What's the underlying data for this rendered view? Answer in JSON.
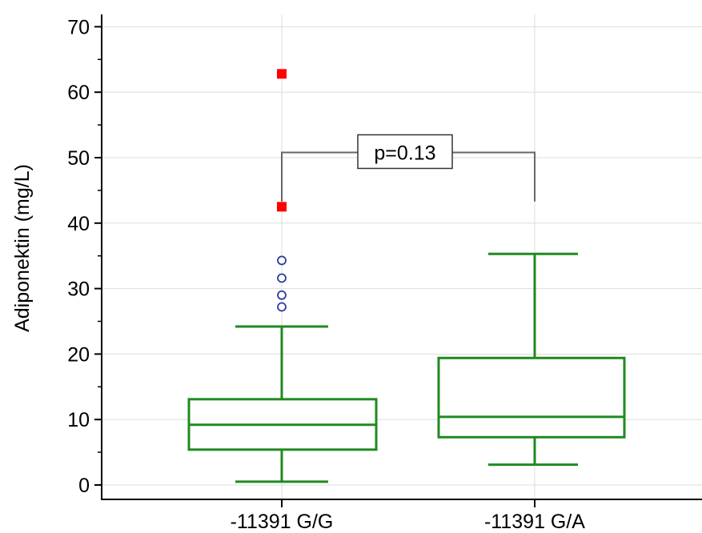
{
  "chart_data": {
    "type": "box",
    "ylabel": "Adiponektin (mg/L)",
    "xlabel": "",
    "ylim": [
      -2,
      70
    ],
    "yticks": [
      0,
      10,
      20,
      30,
      40,
      50,
      60,
      70
    ],
    "categories": [
      "-11391 G/G",
      "-11391 G/A"
    ],
    "grid": "vertical and horizontal light gray",
    "boxes": [
      {
        "category": "-11391 G/G",
        "whisker_low": 0.5,
        "q1": 5.4,
        "median": 9.2,
        "q3": 13.1,
        "whisker_high": 24.2,
        "outliers": [
          27.2,
          29.0,
          31.6,
          34.3
        ],
        "far_outliers": [
          42.5,
          62.8
        ]
      },
      {
        "category": "-11391 G/A",
        "whisker_low": 3.1,
        "q1": 7.3,
        "median": 10.4,
        "q3": 19.4,
        "whisker_high": 35.3,
        "outliers": [],
        "far_outliers": []
      }
    ],
    "annotation": {
      "text": "p=0.13",
      "bracket_y": 50.8,
      "left_end": 43.3,
      "right_end": 43.3
    },
    "colors": {
      "box": "#1f8a1f",
      "outlier": "#2e3a9f",
      "far_outlier": "#ff0000",
      "grid": "#dddddd",
      "bracket": "#666666"
    }
  }
}
